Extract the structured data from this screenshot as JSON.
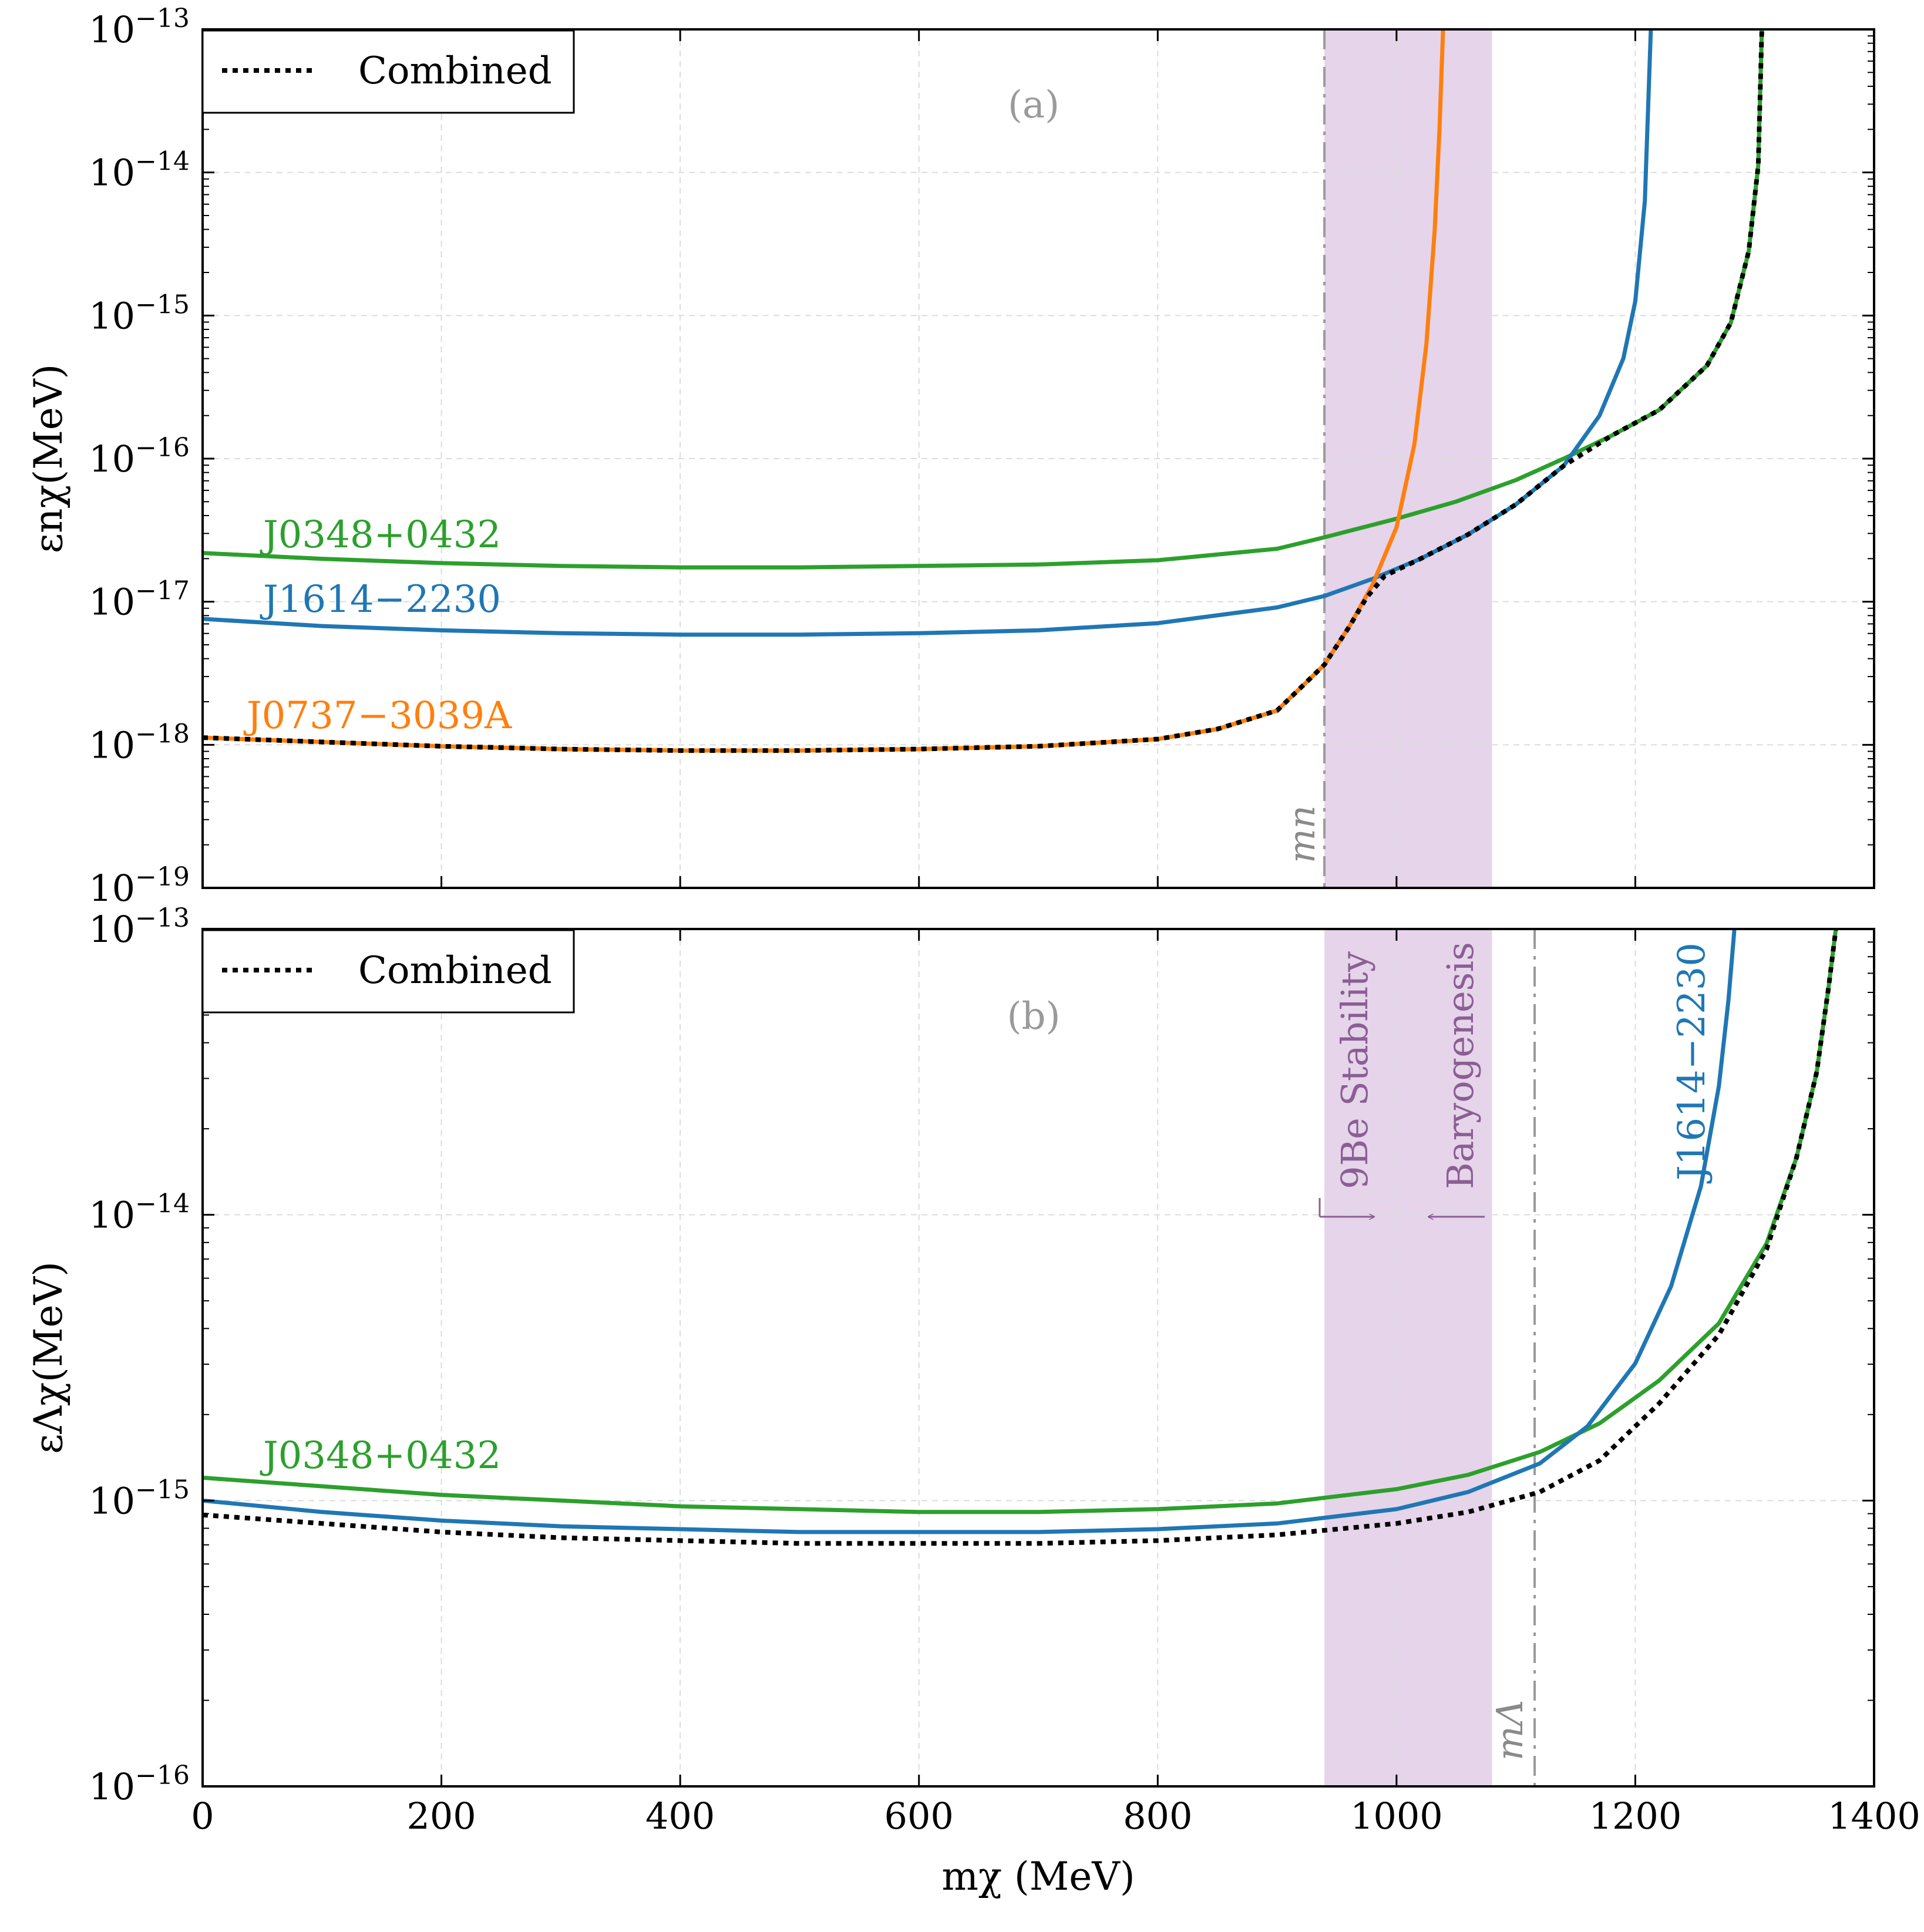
{
  "figure": {
    "xlabel": "mχ (MeV)",
    "x_ticks": [
      "0",
      "200",
      "400",
      "600",
      "800",
      "1000",
      "1200",
      "1400"
    ]
  },
  "chart_data": [
    {
      "type": "line",
      "panel_tag": "(a)",
      "ylabel": "εnχ(MeV)",
      "xlim": [
        0,
        1400
      ],
      "ylim_log10": [
        -19,
        -13
      ],
      "y_ticks": [
        {
          "base": "10",
          "exp": "−19",
          "value": -19
        },
        {
          "base": "10",
          "exp": "−18",
          "value": -18
        },
        {
          "base": "10",
          "exp": "−17",
          "value": -17
        },
        {
          "base": "10",
          "exp": "−16",
          "value": -16
        },
        {
          "base": "10",
          "exp": "−15",
          "value": -15
        },
        {
          "base": "10",
          "exp": "−14",
          "value": -14
        },
        {
          "base": "10",
          "exp": "−13",
          "value": -13
        }
      ],
      "legend": {
        "label": "Combined",
        "placement": "top-left"
      },
      "band": {
        "x_range": [
          939.6,
          1080
        ],
        "color": "#e6d4ea"
      },
      "mass_line": {
        "label": "mn",
        "x": 939.6
      },
      "series": [
        {
          "name": "J0348+0432",
          "label": "J0348+0432",
          "color": "#2ca02c",
          "x": [
            0,
            100,
            200,
            300,
            400,
            500,
            600,
            700,
            800,
            900,
            939.6,
            1000,
            1050,
            1100,
            1140,
            1180,
            1220,
            1260,
            1280,
            1295,
            1303,
            1306
          ],
          "log10_y": [
            -16.66,
            -16.7,
            -16.73,
            -16.75,
            -16.76,
            -16.76,
            -16.75,
            -16.74,
            -16.71,
            -16.63,
            -16.55,
            -16.42,
            -16.3,
            -16.15,
            -16.0,
            -15.84,
            -15.66,
            -15.35,
            -15.05,
            -14.55,
            -13.95,
            -13.0
          ]
        },
        {
          "name": "J1614−2230",
          "label": "J1614−2230",
          "color": "#1f77b4",
          "x": [
            0,
            100,
            200,
            300,
            400,
            500,
            600,
            700,
            800,
            900,
            939.6,
            980,
            1020,
            1060,
            1100,
            1140,
            1170,
            1190,
            1200,
            1208,
            1213
          ],
          "log10_y": [
            -17.12,
            -17.17,
            -17.2,
            -17.22,
            -17.23,
            -17.23,
            -17.22,
            -17.2,
            -17.15,
            -17.04,
            -16.96,
            -16.84,
            -16.7,
            -16.53,
            -16.32,
            -16.05,
            -15.7,
            -15.3,
            -14.9,
            -14.2,
            -13.0
          ]
        },
        {
          "name": "J0737−3039A",
          "label": "J0737−3039A",
          "color": "#ff7f0e",
          "x": [
            0,
            100,
            200,
            300,
            400,
            500,
            600,
            700,
            800,
            850,
            900,
            939.6,
            960,
            980,
            1000,
            1015,
            1025,
            1032,
            1036,
            1039
          ],
          "log10_y": [
            -17.95,
            -17.98,
            -18.01,
            -18.03,
            -18.04,
            -18.04,
            -18.03,
            -18.01,
            -17.96,
            -17.89,
            -17.76,
            -17.44,
            -17.18,
            -16.88,
            -16.48,
            -15.9,
            -15.2,
            -14.4,
            -13.7,
            -13.0
          ]
        },
        {
          "name": "Combined",
          "label": "Combined",
          "color": "#000000",
          "dashed": true,
          "x": [
            0,
            100,
            200,
            300,
            400,
            500,
            600,
            700,
            800,
            850,
            900,
            939.6,
            960,
            975,
            990,
            1020,
            1060,
            1100,
            1140,
            1180,
            1220,
            1260,
            1280,
            1295,
            1303,
            1306
          ],
          "log10_y": [
            -17.95,
            -17.98,
            -18.01,
            -18.03,
            -18.04,
            -18.04,
            -18.03,
            -18.01,
            -17.96,
            -17.89,
            -17.76,
            -17.44,
            -17.18,
            -16.97,
            -16.82,
            -16.7,
            -16.53,
            -16.32,
            -16.05,
            -15.84,
            -15.66,
            -15.35,
            -15.05,
            -14.55,
            -13.95,
            -13.0
          ]
        }
      ]
    },
    {
      "type": "line",
      "panel_tag": "(b)",
      "ylabel": "εΛχ(MeV)",
      "xlim": [
        0,
        1400
      ],
      "ylim_log10": [
        -16,
        -13
      ],
      "y_ticks": [
        {
          "base": "10",
          "exp": "−16",
          "value": -16
        },
        {
          "base": "10",
          "exp": "−15",
          "value": -15
        },
        {
          "base": "10",
          "exp": "−14",
          "value": -14
        },
        {
          "base": "10",
          "exp": "−13",
          "value": -13
        }
      ],
      "legend": {
        "label": "Combined",
        "placement": "top-left"
      },
      "band": {
        "x_range": [
          939.6,
          1080
        ],
        "color": "#e6d4ea"
      },
      "band_labels": [
        {
          "label": "9Be Stability",
          "arrow": "right"
        },
        {
          "label": "Baryogenesis",
          "arrow": "left"
        }
      ],
      "mass_line": {
        "label": "mΛ",
        "x": 1115.7
      },
      "series": [
        {
          "name": "J0348+0432",
          "label": "J0348+0432",
          "color": "#2ca02c",
          "x": [
            0,
            100,
            200,
            300,
            400,
            500,
            600,
            700,
            800,
            900,
            1000,
            1060,
            1120,
            1170,
            1220,
            1270,
            1310,
            1335,
            1352,
            1362,
            1368
          ],
          "log10_y": [
            -14.92,
            -14.95,
            -14.98,
            -15.0,
            -15.02,
            -15.03,
            -15.04,
            -15.04,
            -15.03,
            -15.01,
            -14.96,
            -14.91,
            -14.83,
            -14.73,
            -14.58,
            -14.38,
            -14.1,
            -13.8,
            -13.5,
            -13.2,
            -13.0
          ]
        },
        {
          "name": "J1614−2230",
          "label": "J1614−2230",
          "color": "#1f77b4",
          "x": [
            0,
            100,
            200,
            300,
            400,
            500,
            600,
            700,
            800,
            900,
            1000,
            1060,
            1120,
            1160,
            1200,
            1230,
            1255,
            1270,
            1278,
            1283
          ],
          "log10_y": [
            -15.0,
            -15.04,
            -15.07,
            -15.09,
            -15.1,
            -15.11,
            -15.11,
            -15.11,
            -15.1,
            -15.08,
            -15.03,
            -14.97,
            -14.87,
            -14.74,
            -14.52,
            -14.25,
            -13.9,
            -13.55,
            -13.25,
            -13.0
          ]
        },
        {
          "name": "Combined",
          "label": "Combined",
          "color": "#000000",
          "dashed": true,
          "x": [
            0,
            100,
            200,
            300,
            400,
            500,
            600,
            700,
            800,
            900,
            1000,
            1060,
            1120,
            1170,
            1220,
            1270,
            1310,
            1335,
            1352,
            1362,
            1368
          ],
          "log10_y": [
            -15.05,
            -15.08,
            -15.11,
            -15.13,
            -15.14,
            -15.15,
            -15.15,
            -15.15,
            -15.14,
            -15.12,
            -15.08,
            -15.04,
            -14.97,
            -14.86,
            -14.66,
            -14.42,
            -14.12,
            -13.8,
            -13.5,
            -13.2,
            -13.0
          ]
        }
      ]
    }
  ]
}
